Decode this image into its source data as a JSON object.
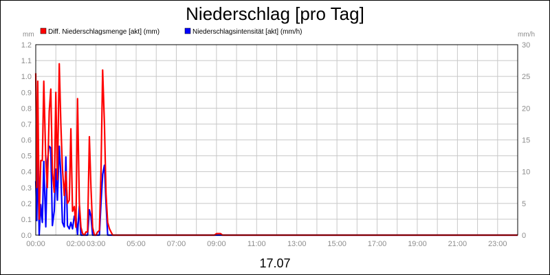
{
  "chart_data": {
    "type": "line",
    "title": "Niederschlag [pro Tag]",
    "date_label": "17.07",
    "left_axis": {
      "unit": "mm",
      "ylim": [
        0,
        1.2
      ],
      "ticks": [
        "0.0",
        "0.1",
        "0.2",
        "0.3",
        "0.4",
        "0.5",
        "0.6",
        "0.7",
        "0.8",
        "0.9",
        "1.0",
        "1.1",
        "1.2"
      ]
    },
    "right_axis": {
      "unit": "mm/h",
      "ylim": [
        0,
        30
      ],
      "ticks": [
        "0",
        "5",
        "10",
        "15",
        "20",
        "25",
        "30"
      ]
    },
    "x_axis": {
      "xlim": [
        0,
        24
      ],
      "tick_hours": [
        0,
        2,
        3,
        5,
        7,
        9,
        11,
        13,
        15,
        17,
        19,
        21,
        23
      ],
      "tick_labels": [
        "00:00",
        "02:00",
        "03:00",
        "05:00",
        "07:00",
        "09:00",
        "11:00",
        "13:00",
        "15:00",
        "17:00",
        "19:00",
        "21:00",
        "23:00"
      ]
    },
    "grid": true,
    "legend": "top-left",
    "series": [
      {
        "name": "Diff. Niederschlagsmenge [akt] (mm)",
        "axis": "left",
        "color": "#ff0000",
        "x": [
          0,
          0.05,
          0.1,
          0.17,
          0.25,
          0.33,
          0.4,
          0.5,
          0.58,
          0.67,
          0.75,
          0.83,
          0.92,
          1.0,
          1.08,
          1.17,
          1.25,
          1.33,
          1.42,
          1.5,
          1.58,
          1.67,
          1.75,
          1.83,
          1.92,
          2.0,
          2.08,
          2.17,
          2.25,
          2.33,
          2.42,
          2.5,
          2.58,
          2.67,
          2.75,
          2.83,
          2.92,
          3.0,
          3.08,
          3.17,
          3.25,
          3.33,
          3.42,
          3.5,
          3.58,
          3.67,
          3.75,
          3.83,
          3.92,
          4.0,
          4.08,
          4.17,
          4.25,
          4.33,
          4.42,
          4.5,
          4.58,
          4.67,
          4.75,
          5.0,
          8.0,
          8.9,
          9.0,
          9.1,
          9.2,
          9.3,
          9.4,
          24
        ],
        "y": [
          1.02,
          0.3,
          0.97,
          0.1,
          0.47,
          0.47,
          0.97,
          0.47,
          0.3,
          0.78,
          0.92,
          0.4,
          0.27,
          0.9,
          0.35,
          1.08,
          0.7,
          0.42,
          0.25,
          0.4,
          0.2,
          0.22,
          0.67,
          0.15,
          0.18,
          0.05,
          0.86,
          0.2,
          0.05,
          0.01,
          0.0,
          0.02,
          0.02,
          0.62,
          0.3,
          0.05,
          0.0,
          0.0,
          0.02,
          0.03,
          0.4,
          1.04,
          0.7,
          0.26,
          0.08,
          0.04,
          0.02,
          0.0,
          0.0,
          0.0,
          0.0,
          0.0,
          0.0,
          0.0,
          0.0,
          0.0,
          0.0,
          0.0,
          0.0,
          0.0,
          0.0,
          0.0,
          0.01,
          0.01,
          0.01,
          0.0,
          0.0,
          0.0
        ]
      },
      {
        "name": "Niederschlagsintensität [akt] (mm/h)",
        "axis": "right",
        "color": "#0000ff",
        "x": [
          0,
          0.05,
          0.1,
          0.17,
          0.25,
          0.33,
          0.4,
          0.5,
          0.58,
          0.67,
          0.75,
          0.83,
          0.92,
          1.0,
          1.08,
          1.17,
          1.25,
          1.33,
          1.42,
          1.5,
          1.58,
          1.67,
          1.75,
          1.83,
          1.92,
          2.0,
          2.08,
          2.17,
          2.25,
          2.33,
          2.42,
          2.5,
          2.58,
          2.67,
          2.75,
          2.83,
          2.92,
          3.0,
          3.08,
          3.17,
          3.25,
          3.33,
          3.42,
          3.5,
          3.58,
          3.67,
          3.75,
          3.83,
          4.0,
          24
        ],
        "y": [
          8.5,
          2.3,
          12.7,
          0.0,
          4.8,
          2.0,
          11.6,
          1.3,
          11.7,
          14.0,
          13.7,
          1.5,
          3.8,
          10.4,
          5.5,
          14.0,
          9.5,
          2.0,
          1.3,
          12.3,
          1.5,
          1.0,
          2.0,
          1.0,
          3.0,
          3.0,
          0.1,
          4.6,
          0.0,
          0.0,
          0.0,
          0.0,
          0.0,
          4.0,
          3.0,
          0.0,
          0.0,
          0.0,
          0.0,
          0.0,
          5.0,
          9.6,
          11.0,
          5.0,
          0.0,
          0.0,
          0.0,
          0.0,
          0.0,
          0.0
        ]
      }
    ]
  }
}
